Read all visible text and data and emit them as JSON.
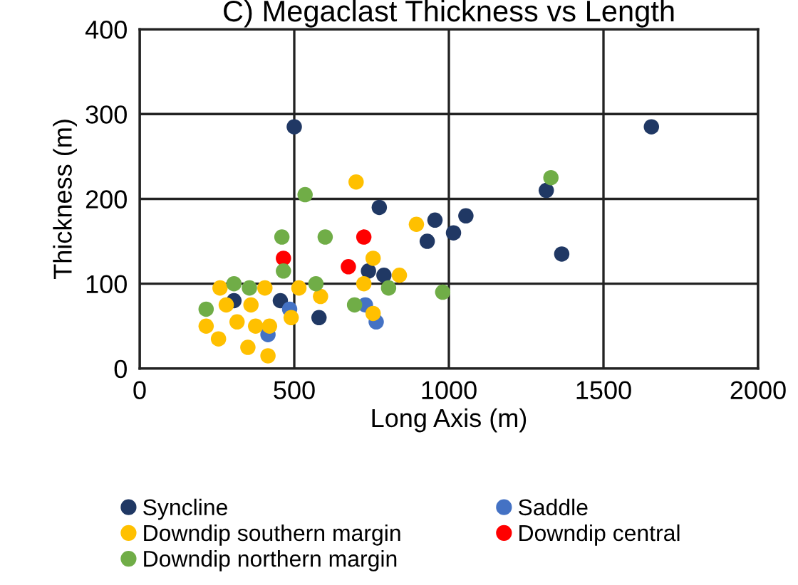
{
  "chart_data": {
    "type": "scatter",
    "title": "C) Megaclast Thickness vs Length",
    "xlabel": "Long Axis (m)",
    "ylabel": "Thickness (m)",
    "xlim": [
      0,
      2000
    ],
    "xticks": [
      0,
      500,
      1000,
      1500,
      2000
    ],
    "ylim": [
      0,
      400
    ],
    "yticks": [
      0,
      100,
      200,
      300,
      400
    ],
    "grid": true,
    "legend": "bottom",
    "marker": "circle",
    "series": [
      {
        "name": "Syncline",
        "color": "#203864",
        "x": [
          500,
          775,
          955,
          1055,
          930,
          1015,
          740,
          790,
          305,
          455,
          475,
          580,
          1655,
          1315,
          1365
        ],
        "values": [
          285,
          190,
          175,
          180,
          150,
          160,
          115,
          110,
          80,
          80,
          null,
          60,
          285,
          210,
          135
        ]
      },
      {
        "name": "Saddle",
        "color": "#4472c4",
        "x": [
          765,
          415,
          485,
          730
        ],
        "values": [
          55,
          40,
          70,
          75
        ]
      },
      {
        "name": "Downdip southern margin",
        "color": "#ffc000",
        "x": [
          700,
          895,
          755,
          840,
          725,
          515,
          585,
          260,
          405,
          215,
          255,
          350,
          415,
          420,
          490,
          360,
          315,
          755,
          375,
          280
        ],
        "values": [
          220,
          170,
          130,
          110,
          100,
          95,
          85,
          95,
          95,
          50,
          35,
          25,
          15,
          50,
          60,
          75,
          55,
          65,
          50,
          75
        ]
      },
      {
        "name": "Downdip central",
        "color": "#ff0000",
        "x": [
          725,
          465,
          675
        ],
        "values": [
          155,
          130,
          120
        ]
      },
      {
        "name": "Downdip northern margin",
        "color": "#70ad47",
        "x": [
          535,
          460,
          600,
          465,
          215,
          305,
          570,
          695,
          805,
          980,
          1330,
          355
        ],
        "values": [
          205,
          155,
          155,
          115,
          70,
          100,
          100,
          75,
          95,
          90,
          225,
          95
        ]
      }
    ]
  }
}
